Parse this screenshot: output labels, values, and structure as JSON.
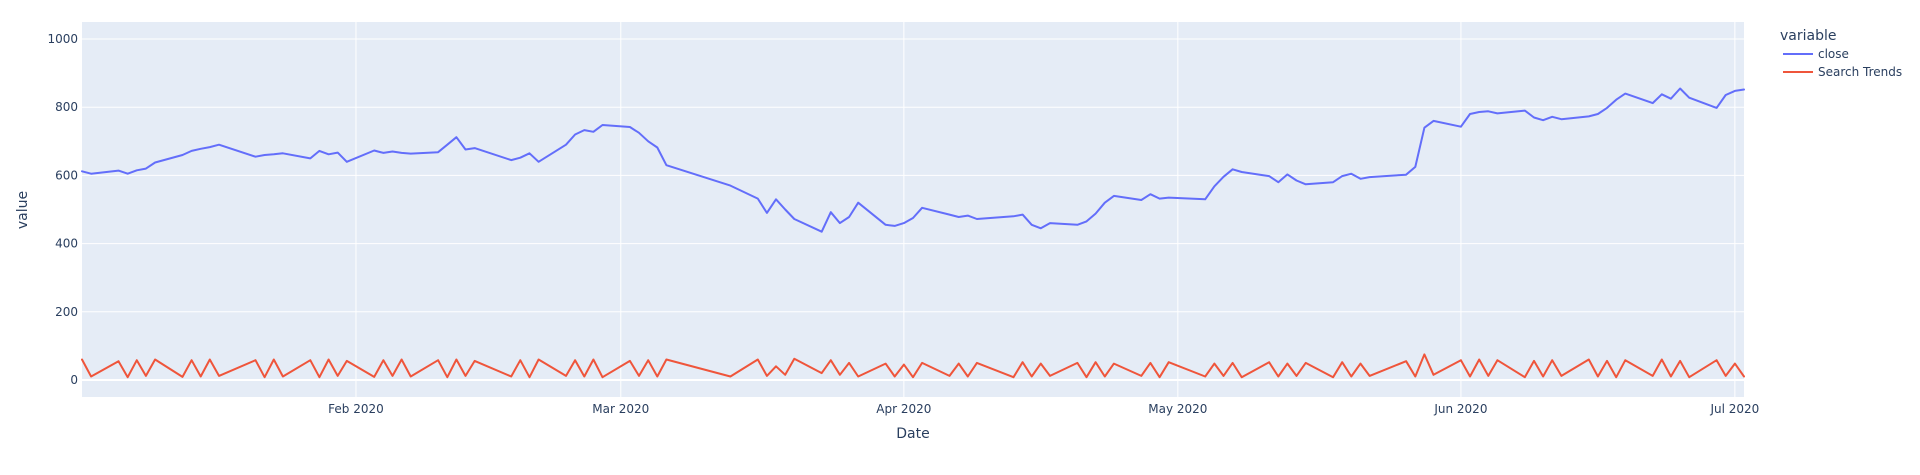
{
  "chart_data": {
    "type": "line",
    "title": "",
    "xlabel": "Date",
    "ylabel": "value",
    "x_range": [
      "2020-01-02",
      "2020-07-02"
    ],
    "ylim": [
      -50,
      1050
    ],
    "y_ticks": [
      0,
      200,
      400,
      600,
      800,
      1000
    ],
    "x_ticks": [
      {
        "date": "2020-02-01",
        "label": "Feb 2020"
      },
      {
        "date": "2020-03-01",
        "label": "Mar 2020"
      },
      {
        "date": "2020-04-01",
        "label": "Apr 2020"
      },
      {
        "date": "2020-05-01",
        "label": "May 2020"
      },
      {
        "date": "2020-06-01",
        "label": "Jun 2020"
      },
      {
        "date": "2020-07-01",
        "label": "Jul 2020"
      }
    ],
    "grid": true,
    "plot_background": "#E5ECF6",
    "legend": {
      "title": "variable",
      "position": "right"
    },
    "series": [
      {
        "name": "close",
        "color": "#636EFA",
        "points": [
          [
            "2020-01-02",
            612
          ],
          [
            "2020-01-03",
            605
          ],
          [
            "2020-01-06",
            614
          ],
          [
            "2020-01-07",
            605
          ],
          [
            "2020-01-08",
            615
          ],
          [
            "2020-01-09",
            620
          ],
          [
            "2020-01-10",
            638
          ],
          [
            "2020-01-13",
            660
          ],
          [
            "2020-01-14",
            672
          ],
          [
            "2020-01-15",
            678
          ],
          [
            "2020-01-16",
            683
          ],
          [
            "2020-01-17",
            690
          ],
          [
            "2020-01-21",
            655
          ],
          [
            "2020-01-22",
            660
          ],
          [
            "2020-01-23",
            662
          ],
          [
            "2020-01-24",
            665
          ],
          [
            "2020-01-27",
            650
          ],
          [
            "2020-01-28",
            672
          ],
          [
            "2020-01-29",
            662
          ],
          [
            "2020-01-30",
            667
          ],
          [
            "2020-01-31",
            640
          ],
          [
            "2020-02-03",
            673
          ],
          [
            "2020-02-04",
            666
          ],
          [
            "2020-02-05",
            670
          ],
          [
            "2020-02-06",
            666
          ],
          [
            "2020-02-07",
            664
          ],
          [
            "2020-02-10",
            668
          ],
          [
            "2020-02-11",
            690
          ],
          [
            "2020-02-12",
            712
          ],
          [
            "2020-02-13",
            676
          ],
          [
            "2020-02-14",
            680
          ],
          [
            "2020-02-18",
            645
          ],
          [
            "2020-02-19",
            652
          ],
          [
            "2020-02-20",
            665
          ],
          [
            "2020-02-21",
            640
          ],
          [
            "2020-02-24",
            690
          ],
          [
            "2020-02-25",
            720
          ],
          [
            "2020-02-26",
            733
          ],
          [
            "2020-02-27",
            728
          ],
          [
            "2020-02-28",
            748
          ],
          [
            "2020-03-02",
            742
          ],
          [
            "2020-03-03",
            725
          ],
          [
            "2020-03-04",
            700
          ],
          [
            "2020-03-05",
            682
          ],
          [
            "2020-03-06",
            630
          ],
          [
            "2020-03-13",
            570
          ],
          [
            "2020-03-16",
            532
          ],
          [
            "2020-03-17",
            490
          ],
          [
            "2020-03-18",
            530
          ],
          [
            "2020-03-19",
            500
          ],
          [
            "2020-03-20",
            472
          ],
          [
            "2020-03-23",
            435
          ],
          [
            "2020-03-24",
            492
          ],
          [
            "2020-03-25",
            460
          ],
          [
            "2020-03-26",
            478
          ],
          [
            "2020-03-27",
            520
          ],
          [
            "2020-03-30",
            455
          ],
          [
            "2020-03-31",
            452
          ],
          [
            "2020-04-01",
            460
          ],
          [
            "2020-04-02",
            475
          ],
          [
            "2020-04-03",
            505
          ],
          [
            "2020-04-06",
            485
          ],
          [
            "2020-04-07",
            478
          ],
          [
            "2020-04-08",
            482
          ],
          [
            "2020-04-09",
            472
          ],
          [
            "2020-04-13",
            480
          ],
          [
            "2020-04-14",
            485
          ],
          [
            "2020-04-15",
            455
          ],
          [
            "2020-04-16",
            445
          ],
          [
            "2020-04-17",
            460
          ],
          [
            "2020-04-20",
            455
          ],
          [
            "2020-04-21",
            465
          ],
          [
            "2020-04-22",
            488
          ],
          [
            "2020-04-23",
            520
          ],
          [
            "2020-04-24",
            540
          ],
          [
            "2020-04-27",
            528
          ],
          [
            "2020-04-28",
            545
          ],
          [
            "2020-04-29",
            532
          ],
          [
            "2020-04-30",
            535
          ],
          [
            "2020-05-04",
            530
          ],
          [
            "2020-05-05",
            568
          ],
          [
            "2020-05-06",
            596
          ],
          [
            "2020-05-07",
            618
          ],
          [
            "2020-05-08",
            610
          ],
          [
            "2020-05-11",
            598
          ],
          [
            "2020-05-12",
            580
          ],
          [
            "2020-05-13",
            603
          ],
          [
            "2020-05-14",
            585
          ],
          [
            "2020-05-15",
            574
          ],
          [
            "2020-05-18",
            580
          ],
          [
            "2020-05-19",
            598
          ],
          [
            "2020-05-20",
            605
          ],
          [
            "2020-05-21",
            590
          ],
          [
            "2020-05-22",
            595
          ],
          [
            "2020-05-26",
            602
          ],
          [
            "2020-05-27",
            625
          ],
          [
            "2020-05-28",
            740
          ],
          [
            "2020-05-29",
            760
          ],
          [
            "2020-06-01",
            743
          ],
          [
            "2020-06-02",
            780
          ],
          [
            "2020-06-03",
            786
          ],
          [
            "2020-06-04",
            788
          ],
          [
            "2020-06-05",
            782
          ],
          [
            "2020-06-08",
            790
          ],
          [
            "2020-06-09",
            770
          ],
          [
            "2020-06-10",
            762
          ],
          [
            "2020-06-11",
            772
          ],
          [
            "2020-06-12",
            765
          ],
          [
            "2020-06-15",
            773
          ],
          [
            "2020-06-16",
            780
          ],
          [
            "2020-06-17",
            798
          ],
          [
            "2020-06-18",
            822
          ],
          [
            "2020-06-19",
            840
          ],
          [
            "2020-06-22",
            812
          ],
          [
            "2020-06-23",
            838
          ],
          [
            "2020-06-24",
            825
          ],
          [
            "2020-06-25",
            855
          ],
          [
            "2020-06-26",
            828
          ],
          [
            "2020-06-29",
            798
          ],
          [
            "2020-06-30",
            836
          ],
          [
            "2020-07-01",
            848
          ],
          [
            "2020-07-02",
            852
          ]
        ]
      },
      {
        "name": "Search Trends",
        "color": "#EF553B",
        "points": [
          [
            "2020-01-02",
            60
          ],
          [
            "2020-01-03",
            10
          ],
          [
            "2020-01-06",
            55
          ],
          [
            "2020-01-07",
            8
          ],
          [
            "2020-01-08",
            58
          ],
          [
            "2020-01-09",
            12
          ],
          [
            "2020-01-10",
            60
          ],
          [
            "2020-01-13",
            9
          ],
          [
            "2020-01-14",
            58
          ],
          [
            "2020-01-15",
            10
          ],
          [
            "2020-01-16",
            60
          ],
          [
            "2020-01-17",
            12
          ],
          [
            "2020-01-21",
            58
          ],
          [
            "2020-01-22",
            8
          ],
          [
            "2020-01-23",
            60
          ],
          [
            "2020-01-24",
            10
          ],
          [
            "2020-01-27",
            58
          ],
          [
            "2020-01-28",
            8
          ],
          [
            "2020-01-29",
            60
          ],
          [
            "2020-01-30",
            12
          ],
          [
            "2020-01-31",
            56
          ],
          [
            "2020-02-03",
            9
          ],
          [
            "2020-02-04",
            58
          ],
          [
            "2020-02-05",
            12
          ],
          [
            "2020-02-06",
            60
          ],
          [
            "2020-02-07",
            10
          ],
          [
            "2020-02-10",
            58
          ],
          [
            "2020-02-11",
            8
          ],
          [
            "2020-02-12",
            60
          ],
          [
            "2020-02-13",
            12
          ],
          [
            "2020-02-14",
            56
          ],
          [
            "2020-02-18",
            10
          ],
          [
            "2020-02-19",
            58
          ],
          [
            "2020-02-20",
            8
          ],
          [
            "2020-02-21",
            60
          ],
          [
            "2020-02-24",
            12
          ],
          [
            "2020-02-25",
            58
          ],
          [
            "2020-02-26",
            10
          ],
          [
            "2020-02-27",
            60
          ],
          [
            "2020-02-28",
            8
          ],
          [
            "2020-03-02",
            56
          ],
          [
            "2020-03-03",
            12
          ],
          [
            "2020-03-04",
            58
          ],
          [
            "2020-03-05",
            10
          ],
          [
            "2020-03-06",
            60
          ],
          [
            "2020-03-13",
            10
          ],
          [
            "2020-03-16",
            60
          ],
          [
            "2020-03-17",
            12
          ],
          [
            "2020-03-18",
            40
          ],
          [
            "2020-03-19",
            15
          ],
          [
            "2020-03-20",
            62
          ],
          [
            "2020-03-23",
            20
          ],
          [
            "2020-03-24",
            58
          ],
          [
            "2020-03-25",
            15
          ],
          [
            "2020-03-26",
            50
          ],
          [
            "2020-03-27",
            10
          ],
          [
            "2020-03-30",
            48
          ],
          [
            "2020-03-31",
            10
          ],
          [
            "2020-04-01",
            45
          ],
          [
            "2020-04-02",
            8
          ],
          [
            "2020-04-03",
            50
          ],
          [
            "2020-04-06",
            12
          ],
          [
            "2020-04-07",
            48
          ],
          [
            "2020-04-08",
            10
          ],
          [
            "2020-04-09",
            50
          ],
          [
            "2020-04-13",
            8
          ],
          [
            "2020-04-14",
            52
          ],
          [
            "2020-04-15",
            10
          ],
          [
            "2020-04-16",
            48
          ],
          [
            "2020-04-17",
            12
          ],
          [
            "2020-04-20",
            50
          ],
          [
            "2020-04-21",
            8
          ],
          [
            "2020-04-22",
            52
          ],
          [
            "2020-04-23",
            10
          ],
          [
            "2020-04-24",
            48
          ],
          [
            "2020-04-27",
            12
          ],
          [
            "2020-04-28",
            50
          ],
          [
            "2020-04-29",
            8
          ],
          [
            "2020-04-30",
            52
          ],
          [
            "2020-05-04",
            10
          ],
          [
            "2020-05-05",
            48
          ],
          [
            "2020-05-06",
            12
          ],
          [
            "2020-05-07",
            50
          ],
          [
            "2020-05-08",
            8
          ],
          [
            "2020-05-11",
            52
          ],
          [
            "2020-05-12",
            10
          ],
          [
            "2020-05-13",
            48
          ],
          [
            "2020-05-14",
            12
          ],
          [
            "2020-05-15",
            50
          ],
          [
            "2020-05-18",
            8
          ],
          [
            "2020-05-19",
            52
          ],
          [
            "2020-05-20",
            10
          ],
          [
            "2020-05-21",
            48
          ],
          [
            "2020-05-22",
            12
          ],
          [
            "2020-05-26",
            55
          ],
          [
            "2020-05-27",
            10
          ],
          [
            "2020-05-28",
            75
          ],
          [
            "2020-05-29",
            15
          ],
          [
            "2020-06-01",
            58
          ],
          [
            "2020-06-02",
            10
          ],
          [
            "2020-06-03",
            60
          ],
          [
            "2020-06-04",
            12
          ],
          [
            "2020-06-05",
            58
          ],
          [
            "2020-06-08",
            8
          ],
          [
            "2020-06-09",
            56
          ],
          [
            "2020-06-10",
            10
          ],
          [
            "2020-06-11",
            58
          ],
          [
            "2020-06-12",
            12
          ],
          [
            "2020-06-15",
            60
          ],
          [
            "2020-06-16",
            10
          ],
          [
            "2020-06-17",
            56
          ],
          [
            "2020-06-18",
            8
          ],
          [
            "2020-06-19",
            58
          ],
          [
            "2020-06-22",
            12
          ],
          [
            "2020-06-23",
            60
          ],
          [
            "2020-06-24",
            10
          ],
          [
            "2020-06-25",
            56
          ],
          [
            "2020-06-26",
            8
          ],
          [
            "2020-06-29",
            58
          ],
          [
            "2020-06-30",
            12
          ],
          [
            "2020-07-01",
            48
          ],
          [
            "2020-07-02",
            10
          ]
        ]
      }
    ]
  }
}
